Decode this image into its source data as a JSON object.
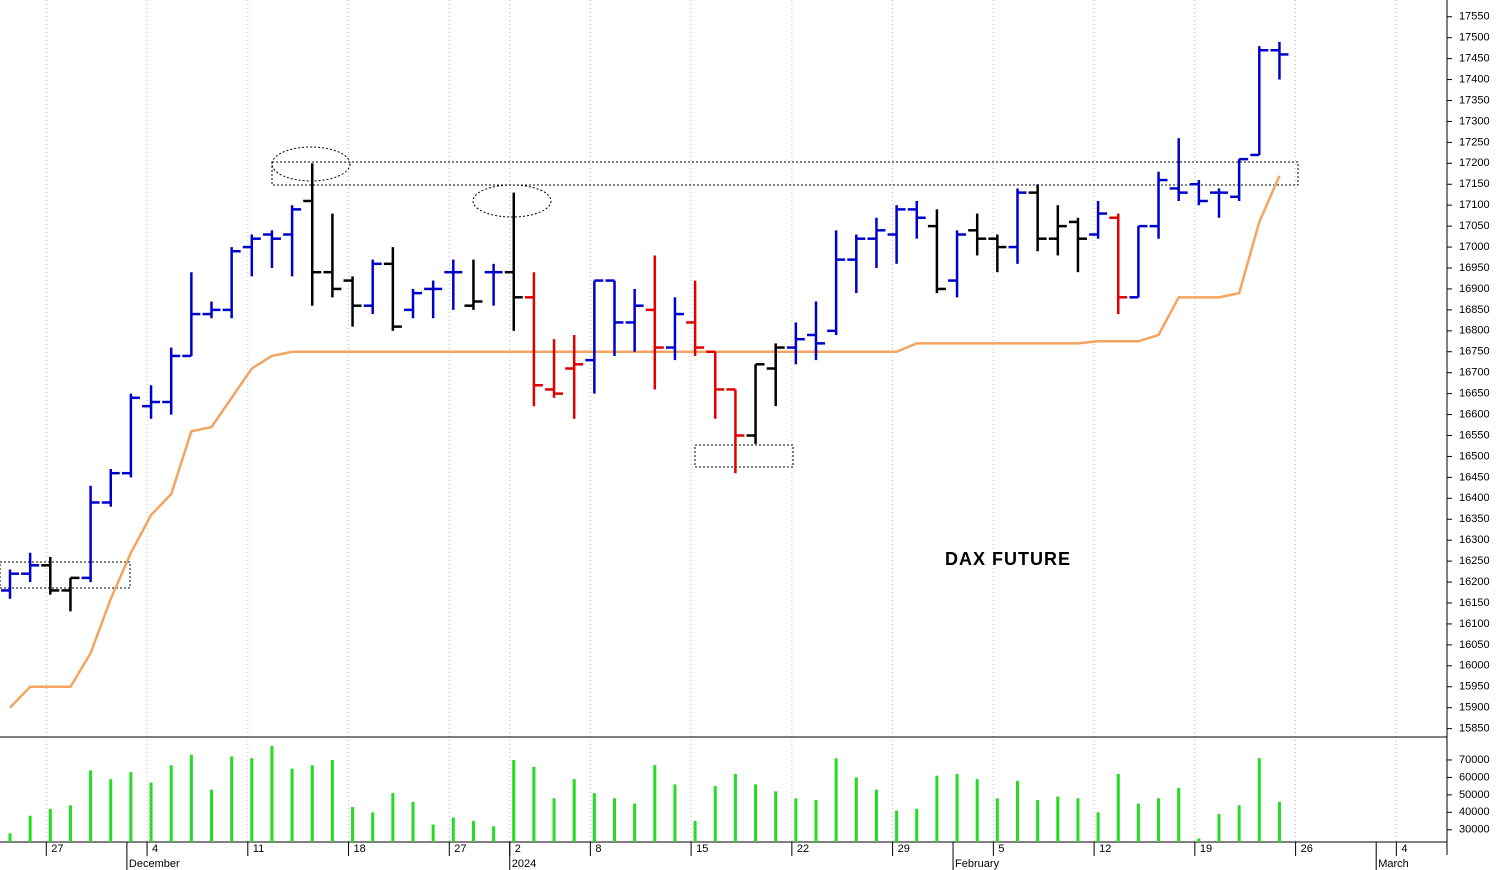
{
  "chart_data": [
    {
      "type": "ohlc",
      "annotation": "DAX FUTURE",
      "categories": [
        null,
        null,
        "27",
        null,
        null,
        null,
        null,
        "4",
        null,
        null,
        null,
        null,
        "11",
        null,
        null,
        null,
        null,
        "18",
        null,
        null,
        null,
        null,
        "27",
        null,
        null,
        "2",
        null,
        null,
        null,
        "8",
        null,
        null,
        null,
        null,
        "15",
        null,
        null,
        null,
        null,
        "22",
        null,
        null,
        null,
        null,
        "29",
        null,
        null,
        null,
        null,
        "5",
        null,
        null,
        null,
        null,
        "12",
        null,
        null,
        null,
        null,
        "19",
        null,
        null,
        null,
        null,
        "26",
        null,
        null,
        null,
        null,
        "4",
        null,
        null
      ],
      "category_months": [
        null,
        null,
        null,
        null,
        null,
        null,
        "December",
        null,
        null,
        null,
        null,
        null,
        null,
        null,
        null,
        null,
        null,
        null,
        null,
        null,
        null,
        null,
        null,
        null,
        null,
        "2024",
        null,
        null,
        null,
        null,
        null,
        null,
        null,
        null,
        null,
        null,
        null,
        null,
        null,
        null,
        null,
        null,
        null,
        null,
        null,
        null,
        null,
        "February",
        null,
        null,
        null,
        null,
        null,
        null,
        null,
        null,
        null,
        null,
        null,
        null,
        null,
        null,
        null,
        null,
        null,
        null,
        null,
        null,
        "March",
        null,
        null,
        null
      ],
      "open": [
        16180,
        16220,
        16240,
        16180,
        16210,
        16390,
        16460,
        16620,
        16630,
        16740,
        16840,
        16850,
        17000,
        17030,
        17030,
        17110,
        16940,
        16920,
        16860,
        16960,
        16850,
        16900,
        16940,
        16860,
        16940,
        16940,
        16880,
        16660,
        16710,
        16730,
        16920,
        16820,
        16850,
        16760,
        16820,
        16750,
        16660,
        16550,
        16710,
        16760,
        16790,
        16800,
        16970,
        17020,
        17030,
        17090,
        17050,
        16920,
        17040,
        17020,
        17000,
        17130,
        17020,
        17060,
        17030,
        17070,
        16880,
        17050,
        17140,
        17150,
        17130,
        17120,
        17220,
        17470,
        null,
        null,
        null,
        null,
        null,
        null,
        null,
        null
      ],
      "high": [
        16230,
        16270,
        16260,
        16210,
        16430,
        16470,
        16650,
        16670,
        16760,
        16940,
        16870,
        17000,
        17030,
        17040,
        17100,
        17200,
        17080,
        16930,
        16970,
        17000,
        16900,
        16920,
        16970,
        16970,
        16960,
        17130,
        16940,
        16780,
        16790,
        16920,
        16920,
        16900,
        16980,
        16880,
        16920,
        16750,
        16660,
        16720,
        16770,
        16820,
        16870,
        17040,
        17030,
        17070,
        17100,
        17110,
        17090,
        17040,
        17080,
        17030,
        17140,
        17150,
        17100,
        17070,
        17110,
        17080,
        17050,
        17180,
        17260,
        17160,
        17140,
        17210,
        17480,
        17490,
        null,
        null,
        null,
        null,
        null,
        null,
        null,
        null
      ],
      "low": [
        16160,
        16200,
        16170,
        16130,
        16200,
        16380,
        16450,
        16590,
        16600,
        16740,
        16830,
        16830,
        16930,
        16950,
        16930,
        16860,
        16880,
        16810,
        16840,
        16800,
        16830,
        16830,
        16850,
        16850,
        16860,
        16800,
        16620,
        16640,
        16590,
        16650,
        16740,
        16750,
        16660,
        16730,
        16740,
        16590,
        16460,
        16530,
        16620,
        16720,
        16730,
        16790,
        16890,
        16950,
        16960,
        17020,
        16890,
        16880,
        16980,
        16940,
        16960,
        16990,
        16980,
        16940,
        17020,
        16840,
        16880,
        17020,
        17110,
        17100,
        17070,
        17110,
        17220,
        17400,
        null,
        null,
        null,
        null,
        null,
        null,
        null,
        null
      ],
      "close": [
        16220,
        16240,
        16180,
        16210,
        16390,
        16460,
        16640,
        16630,
        16740,
        16840,
        16850,
        16990,
        17020,
        17020,
        17090,
        16940,
        16900,
        16860,
        16960,
        16810,
        16890,
        16900,
        16940,
        16870,
        16940,
        16880,
        16670,
        16650,
        16720,
        16920,
        16820,
        16860,
        16760,
        16840,
        16760,
        16660,
        16550,
        16720,
        16760,
        16780,
        16770,
        16970,
        17020,
        17040,
        17090,
        17070,
        16900,
        17030,
        17020,
        17000,
        17130,
        17020,
        17050,
        17020,
        17080,
        16880,
        17050,
        17160,
        17130,
        17110,
        17130,
        17210,
        17470,
        17460,
        null,
        null,
        null,
        null,
        null,
        null,
        null,
        null
      ],
      "colors": [
        "#0000cc",
        "#0000cc",
        "#000000",
        "#000000",
        "#0000cc",
        "#0000cc",
        "#0000cc",
        "#0000cc",
        "#0000cc",
        "#0000cc",
        "#0000cc",
        "#0000cc",
        "#0000cc",
        "#0000cc",
        "#0000cc",
        "#000000",
        "#000000",
        "#000000",
        "#0000cc",
        "#000000",
        "#0000cc",
        "#0000cc",
        "#0000cc",
        "#000000",
        "#0000cc",
        "#000000",
        "#e00000",
        "#e00000",
        "#e00000",
        "#0000cc",
        "#0000cc",
        "#0000cc",
        "#e00000",
        "#0000cc",
        "#e00000",
        "#e00000",
        "#e00000",
        "#000000",
        "#000000",
        "#0000cc",
        "#0000cc",
        "#0000cc",
        "#0000cc",
        "#0000cc",
        "#0000cc",
        "#0000cc",
        "#000000",
        "#0000cc",
        "#000000",
        "#000000",
        "#0000cc",
        "#000000",
        "#000000",
        "#000000",
        "#0000cc",
        "#e00000",
        "#0000cc",
        "#0000cc",
        "#0000cc",
        "#0000cc",
        "#0000cc",
        "#0000cc",
        "#0000cc",
        "#0000cc",
        null,
        null,
        null,
        null,
        null,
        null,
        null,
        null
      ],
      "line": {
        "color": "#f4a460",
        "values": [
          15900,
          15950,
          15950,
          15950,
          16030,
          16160,
          16270,
          16360,
          16410,
          16560,
          16570,
          16640,
          16710,
          16740,
          16750,
          16750,
          16750,
          16750,
          16750,
          16750,
          16750,
          16750,
          16750,
          16750,
          16750,
          16750,
          16750,
          16750,
          16750,
          16750,
          16750,
          16750,
          16750,
          16750,
          16750,
          16750,
          16750,
          16750,
          16750,
          16750,
          16750,
          16750,
          16750,
          16750,
          16750,
          16770,
          16770,
          16770,
          16770,
          16770,
          16770,
          16770,
          16770,
          16770,
          16775,
          16775,
          16775,
          16790,
          16880,
          16880,
          16880,
          16890,
          17060,
          17170,
          null,
          null,
          null,
          null,
          null,
          null,
          null,
          null
        ]
      },
      "ylim": [
        15830,
        17590
      ],
      "yticks": [
        15850,
        15900,
        15950,
        16000,
        16050,
        16100,
        16150,
        16200,
        16250,
        16300,
        16350,
        16400,
        16450,
        16500,
        16550,
        16600,
        16650,
        16700,
        16750,
        16800,
        16850,
        16900,
        16950,
        17000,
        17050,
        17100,
        17150,
        17200,
        17250,
        17300,
        17350,
        17400,
        17450,
        17500,
        17550
      ],
      "grid": true
    },
    {
      "type": "bar",
      "values": [
        28000,
        38000,
        42000,
        44000,
        64000,
        59000,
        63000,
        57000,
        67000,
        73000,
        53000,
        72000,
        71000,
        78000,
        65000,
        67000,
        70000,
        43000,
        40000,
        51000,
        46000,
        33000,
        37000,
        35000,
        32000,
        70000,
        66000,
        48000,
        59000,
        51000,
        48000,
        45000,
        67000,
        56000,
        35000,
        55000,
        62000,
        56000,
        52000,
        48000,
        47000,
        71000,
        60000,
        53000,
        41000,
        42000,
        61000,
        62000,
        59000,
        48000,
        58000,
        47000,
        49000,
        48000,
        40000,
        62000,
        45000,
        48000,
        54000,
        25000,
        39000,
        44000,
        71000,
        46000,
        null,
        null,
        null,
        null,
        null,
        null,
        null,
        null
      ],
      "color": "#22dd22",
      "ylim": [
        23000,
        82000
      ],
      "yticks": [
        30000,
        40000,
        50000,
        60000,
        70000
      ]
    }
  ]
}
